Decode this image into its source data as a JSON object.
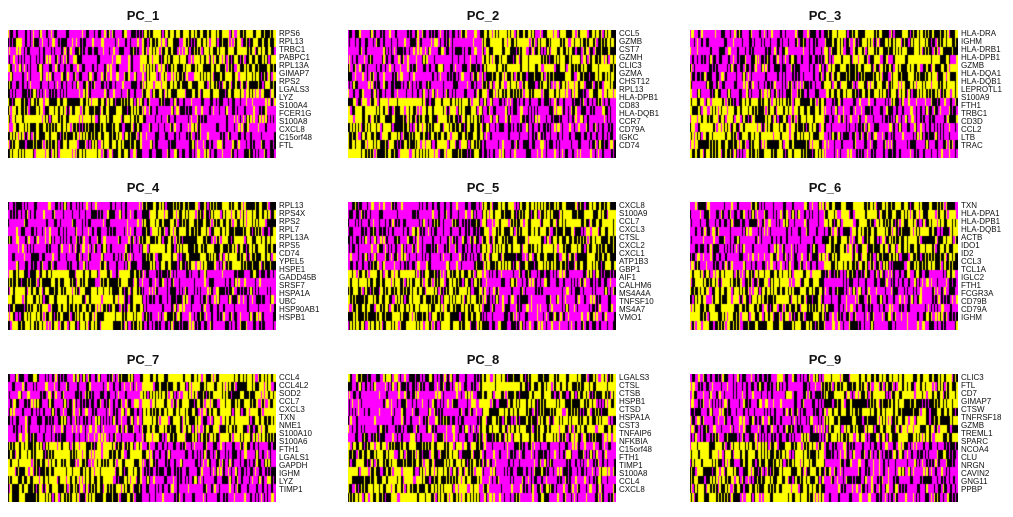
{
  "chart_data": [
    {
      "type": "heatmap",
      "title": "PC_1",
      "colors": {
        "low": "#ff00ff",
        "mid": "#000000",
        "high": "#ffff00"
      },
      "genes": [
        "RPS6",
        "RPL13",
        "TRBC1",
        "PABPC1",
        "RPL13A",
        "GIMAP7",
        "RPS2",
        "LGALS3",
        "LYZ",
        "S100A4",
        "FCER1G",
        "S100A8",
        "CXCL8",
        "C15orf48",
        "FTL"
      ]
    },
    {
      "type": "heatmap",
      "title": "PC_2",
      "colors": {
        "low": "#ff00ff",
        "mid": "#000000",
        "high": "#ffff00"
      },
      "genes": [
        "CCL5",
        "GZMB",
        "CST7",
        "GZMH",
        "CLIC3",
        "GZMA",
        "CHST12",
        "RPL13",
        "HLA-DPB1",
        "CD83",
        "HLA-DQB1",
        "CCR7",
        "CD79A",
        "IGKC",
        "CD74"
      ]
    },
    {
      "type": "heatmap",
      "title": "PC_3",
      "colors": {
        "low": "#ff00ff",
        "mid": "#000000",
        "high": "#ffff00"
      },
      "genes": [
        "HLA-DRA",
        "IGHM",
        "HLA-DRB1",
        "HLA-DPB1",
        "GZMB",
        "HLA-DQA1",
        "HLA-DQB1",
        "LEPROTL1",
        "S100A9",
        "FTH1",
        "TRBC1",
        "CD3D",
        "CCL2",
        "LTB",
        "TRAC"
      ]
    },
    {
      "type": "heatmap",
      "title": "PC_4",
      "colors": {
        "low": "#ff00ff",
        "mid": "#000000",
        "high": "#ffff00"
      },
      "genes": [
        "RPL13",
        "RPS4X",
        "RPS2",
        "RPL7",
        "RPL13A",
        "RPS5",
        "CD74",
        "YPEL5",
        "HSPE1",
        "GADD45B",
        "SRSF7",
        "HSPA1A",
        "UBC",
        "HSP90AB1",
        "HSPB1"
      ]
    },
    {
      "type": "heatmap",
      "title": "PC_5",
      "colors": {
        "low": "#ff00ff",
        "mid": "#000000",
        "high": "#ffff00"
      },
      "genes": [
        "CXCL8",
        "S100A9",
        "CCL7",
        "CXCL3",
        "CTSL",
        "CXCL2",
        "CXCL1",
        "ATP1B3",
        "GBP1",
        "AIF1",
        "CALHM6",
        "MS4A4A",
        "TNFSF10",
        "MS4A7",
        "VMO1"
      ]
    },
    {
      "type": "heatmap",
      "title": "PC_6",
      "colors": {
        "low": "#ff00ff",
        "mid": "#000000",
        "high": "#ffff00"
      },
      "genes": [
        "TXN",
        "HLA-DPA1",
        "HLA-DPB1",
        "HLA-DQB1",
        "ACTB",
        "IDO1",
        "ID2",
        "CCL3",
        "TCL1A",
        "IGLC2",
        "FTH1",
        "FCGR3A",
        "CD79B",
        "CD79A",
        "IGHM"
      ]
    },
    {
      "type": "heatmap",
      "title": "PC_7",
      "colors": {
        "low": "#ff00ff",
        "mid": "#000000",
        "high": "#ffff00"
      },
      "genes": [
        "CCL4",
        "CCL4L2",
        "SOD2",
        "CCL7",
        "CXCL3",
        "TXN",
        "NME1",
        "S100A10",
        "S100A6",
        "FTH1",
        "LGALS1",
        "GAPDH",
        "IGHM",
        "LYZ",
        "TIMP1"
      ]
    },
    {
      "type": "heatmap",
      "title": "PC_8",
      "colors": {
        "low": "#ff00ff",
        "mid": "#000000",
        "high": "#ffff00"
      },
      "genes": [
        "LGALS3",
        "CTSL",
        "CTSB",
        "HSPB1",
        "CTSD",
        "HSPA1A",
        "CST3",
        "TNFAIP6",
        "NFKBIA",
        "C15orf48",
        "FTH1",
        "TIMP1",
        "S100A8",
        "CCL4",
        "CXCL8"
      ]
    },
    {
      "type": "heatmap",
      "title": "PC_9",
      "colors": {
        "low": "#ff00ff",
        "mid": "#000000",
        "high": "#ffff00"
      },
      "genes": [
        "CLIC3",
        "FTL",
        "CD7",
        "GIMAP7",
        "CTSW",
        "TNFRSF18",
        "GZMB",
        "TREML1",
        "SPARC",
        "NCOA4",
        "CLU",
        "NRGN",
        "CAVIN2",
        "GNG11",
        "PPBP"
      ]
    }
  ]
}
